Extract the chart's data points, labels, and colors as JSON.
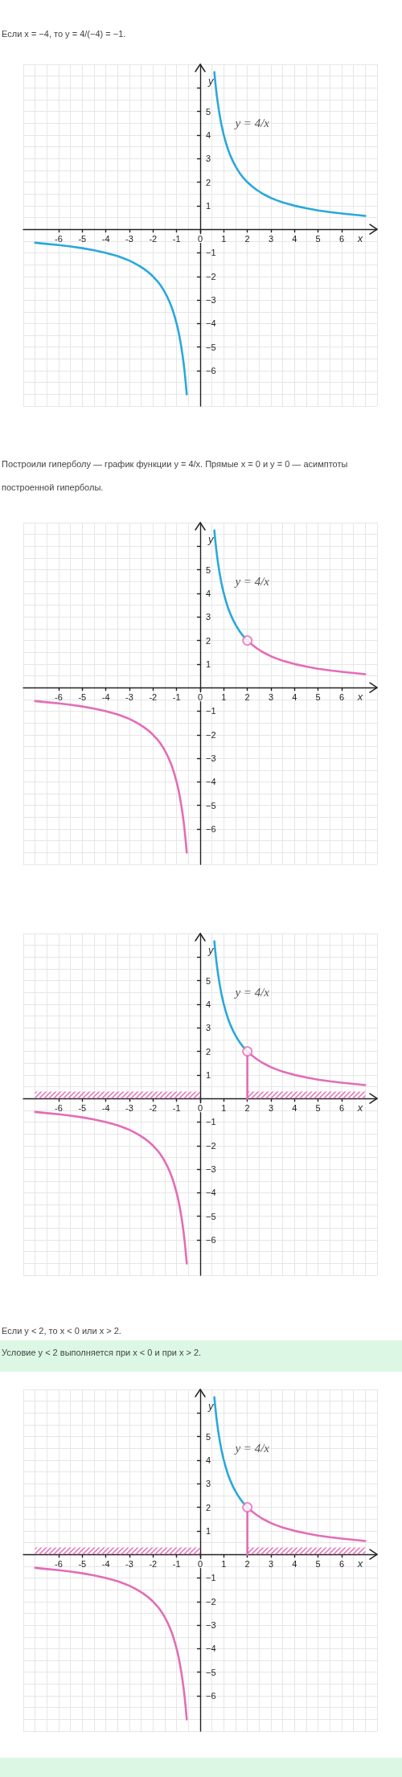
{
  "chart_data": [
    {
      "type": "line",
      "title": "Если x = −4, то y = 4/(−4) = −1.",
      "xlabel": "x",
      "ylabel": "y",
      "xlim": [
        -7.5,
        7.5
      ],
      "ylim": [
        -7.5,
        7
      ],
      "xticks": [
        -6,
        -5,
        -4,
        -3,
        -2,
        -1,
        0,
        1,
        2,
        3,
        4,
        5,
        6
      ],
      "yticks": [
        {
          "value": 6,
          "label": null
        },
        5,
        4,
        3,
        2,
        1,
        {
          "value": -1,
          "label": "−1"
        },
        {
          "value": -2,
          "label": "−2"
        },
        {
          "value": -3,
          "label": "−3"
        },
        {
          "value": -4,
          "label": "−4"
        },
        {
          "value": -5,
          "label": "−5"
        },
        {
          "value": -6,
          "label": "−6"
        }
      ],
      "grid": true,
      "annotations": [
        "y = 4/x"
      ],
      "series": [
        {
          "color": "#2aa8dc",
          "x": [
            0.6,
            0.62,
            0.65,
            0.68,
            0.7,
            0.75,
            0.8,
            0.85,
            0.9,
            0.95,
            1,
            1.1,
            1.2,
            1.3,
            1.4,
            1.5,
            1.6,
            1.7,
            1.8,
            1.9,
            2,
            2.2,
            2.4,
            2.6,
            2.8,
            3,
            3.25,
            3.5,
            3.75,
            4,
            4.5,
            5,
            5.5,
            6,
            6.5,
            7
          ],
          "values": [
            6.67,
            6.45,
            6.15,
            5.88,
            5.71,
            5.33,
            5,
            4.71,
            4.44,
            4.21,
            4,
            3.64,
            3.33,
            3.08,
            2.86,
            2.67,
            2.5,
            2.35,
            2.22,
            2.11,
            2,
            1.82,
            1.67,
            1.54,
            1.43,
            1.33,
            1.23,
            1.14,
            1.07,
            1,
            0.89,
            0.8,
            0.73,
            0.67,
            0.62,
            0.57
          ]
        },
        {
          "color": "#2aa8dc",
          "x": [
            -7,
            -6.5,
            -6,
            -5.5,
            -5,
            -4.5,
            -4,
            -3.75,
            -3.5,
            -3.25,
            -3,
            -2.8,
            -2.6,
            -2.4,
            -2.2,
            -2,
            -1.9,
            -1.8,
            -1.7,
            -1.6,
            -1.5,
            -1.4,
            -1.3,
            -1.2,
            -1.1,
            -1,
            -0.95,
            -0.9,
            -0.85,
            -0.8,
            -0.75,
            -0.7,
            -0.68,
            -0.65,
            -0.62,
            -0.6,
            -0.57
          ],
          "values": [
            -0.57,
            -0.62,
            -0.67,
            -0.73,
            -0.8,
            -0.89,
            -1,
            -1.07,
            -1.14,
            -1.23,
            -1.33,
            -1.43,
            -1.54,
            -1.67,
            -1.82,
            -2,
            -2.11,
            -2.22,
            -2.35,
            -2.5,
            -2.67,
            -2.86,
            -3.08,
            -3.33,
            -3.64,
            -4,
            -4.21,
            -4.44,
            -4.71,
            -5,
            -5.33,
            -5.71,
            -5.88,
            -6.15,
            -6.45,
            -6.67,
            -7
          ]
        }
      ]
    },
    {
      "type": "line",
      "title": "Построили гиперболу — график функции y = 4/x. Прямые x = 0 и y = 0 — асимптоты построенной гиперболы.",
      "xlabel": "x",
      "ylabel": "y",
      "xlim": [
        -7.5,
        7.5
      ],
      "ylim": [
        -7.5,
        7
      ],
      "xticks": [
        -6,
        -5,
        -4,
        -3,
        -2,
        -1,
        0,
        1,
        2,
        3,
        4,
        5,
        6
      ],
      "yticks": [
        {
          "value": 6,
          "label": null
        },
        5,
        4,
        3,
        2,
        1,
        {
          "value": -1,
          "label": "−1"
        },
        {
          "value": -2,
          "label": "−2"
        },
        {
          "value": -3,
          "label": "−3"
        },
        {
          "value": -4,
          "label": "−4"
        },
        {
          "value": -5,
          "label": "−5"
        },
        {
          "value": -6,
          "label": "−6"
        }
      ],
      "grid": true,
      "annotations": [
        "y = 4/x"
      ],
      "series": [
        {
          "color": "#2aa8dc",
          "x": [
            0.6,
            0.62,
            0.65,
            0.68,
            0.7,
            0.75,
            0.8,
            0.85,
            0.9,
            0.95,
            1,
            1.1,
            1.2,
            1.3,
            1.4,
            1.5,
            1.6,
            1.7,
            1.8,
            1.9,
            2
          ],
          "values": [
            6.67,
            6.45,
            6.15,
            5.88,
            5.71,
            5.33,
            5,
            4.71,
            4.44,
            4.21,
            4,
            3.64,
            3.33,
            3.08,
            2.86,
            2.67,
            2.5,
            2.35,
            2.22,
            2.11,
            2
          ]
        },
        {
          "color": "#e36db6",
          "x": [
            2,
            2.2,
            2.4,
            2.6,
            2.8,
            3,
            3.25,
            3.5,
            3.75,
            4,
            4.5,
            5,
            5.5,
            6,
            6.5,
            7
          ],
          "values": [
            2,
            1.82,
            1.67,
            1.54,
            1.43,
            1.33,
            1.23,
            1.14,
            1.07,
            1,
            0.89,
            0.8,
            0.73,
            0.67,
            0.62,
            0.57
          ]
        },
        {
          "color": "#e36db6",
          "x": [
            -7,
            -6.5,
            -6,
            -5.5,
            -5,
            -4.5,
            -4,
            -3.75,
            -3.5,
            -3.25,
            -3,
            -2.8,
            -2.6,
            -2.4,
            -2.2,
            -2,
            -1.9,
            -1.8,
            -1.7,
            -1.6,
            -1.5,
            -1.4,
            -1.3,
            -1.2,
            -1.1,
            -1,
            -0.95,
            -0.9,
            -0.85,
            -0.8,
            -0.75,
            -0.7,
            -0.68,
            -0.65,
            -0.62,
            -0.6,
            -0.57
          ],
          "values": [
            -0.57,
            -0.62,
            -0.67,
            -0.73,
            -0.8,
            -0.89,
            -1,
            -1.07,
            -1.14,
            -1.23,
            -1.33,
            -1.43,
            -1.54,
            -1.67,
            -1.82,
            -2,
            -2.11,
            -2.22,
            -2.35,
            -2.5,
            -2.67,
            -2.86,
            -3.08,
            -3.33,
            -3.64,
            -4,
            -4.21,
            -4.44,
            -4.71,
            -5,
            -5.33,
            -5.71,
            -5.88,
            -6.15,
            -6.45,
            -6.67,
            -7
          ]
        },
        {
          "type": "scatter",
          "marker": "circle",
          "color": "#e36db6",
          "x": [
            2
          ],
          "values": [
            2
          ]
        }
      ]
    },
    {
      "type": "line",
      "xlabel": "x",
      "ylabel": "y",
      "xlim": [
        -7.5,
        7.5
      ],
      "ylim": [
        -7.5,
        7
      ],
      "xticks": [
        -6,
        -5,
        -4,
        -3,
        -2,
        -1,
        0,
        1,
        2,
        3,
        4,
        5,
        6
      ],
      "yticks": [
        {
          "value": 6,
          "label": null
        },
        5,
        4,
        3,
        2,
        1,
        {
          "value": -1,
          "label": "−1"
        },
        {
          "value": -2,
          "label": "−2"
        },
        {
          "value": -3,
          "label": "−3"
        },
        {
          "value": -4,
          "label": "−4"
        },
        {
          "value": -5,
          "label": "−5"
        },
        {
          "value": -6,
          "label": "−6"
        }
      ],
      "grid": true,
      "annotations": [
        "y = 4/x"
      ],
      "series": [
        {
          "type": "area",
          "color": "#e36db6",
          "x": [
            -7,
            0
          ],
          "values": [
            0.3,
            0.3
          ]
        },
        {
          "type": "area",
          "color": "#e36db6",
          "x": [
            2,
            7
          ],
          "values": [
            0.3,
            0.3
          ]
        },
        {
          "color": "#2aa8dc",
          "x": [
            0.6,
            0.62,
            0.65,
            0.68,
            0.7,
            0.75,
            0.8,
            0.85,
            0.9,
            0.95,
            1,
            1.1,
            1.2,
            1.3,
            1.4,
            1.5,
            1.6,
            1.7,
            1.8,
            1.9,
            2
          ],
          "values": [
            6.67,
            6.45,
            6.15,
            5.88,
            5.71,
            5.33,
            5,
            4.71,
            4.44,
            4.21,
            4,
            3.64,
            3.33,
            3.08,
            2.86,
            2.67,
            2.5,
            2.35,
            2.22,
            2.11,
            2
          ]
        },
        {
          "color": "#e36db6",
          "x": [
            2,
            2.2,
            2.4,
            2.6,
            2.8,
            3,
            3.25,
            3.5,
            3.75,
            4,
            4.5,
            5,
            5.5,
            6,
            6.5,
            7
          ],
          "values": [
            2,
            1.82,
            1.67,
            1.54,
            1.43,
            1.33,
            1.23,
            1.14,
            1.07,
            1,
            0.89,
            0.8,
            0.73,
            0.67,
            0.62,
            0.57
          ]
        },
        {
          "color": "#e36db6",
          "x": [
            -7,
            -6.5,
            -6,
            -5.5,
            -5,
            -4.5,
            -4,
            -3.75,
            -3.5,
            -3.25,
            -3,
            -2.8,
            -2.6,
            -2.4,
            -2.2,
            -2,
            -1.9,
            -1.8,
            -1.7,
            -1.6,
            -1.5,
            -1.4,
            -1.3,
            -1.2,
            -1.1,
            -1,
            -0.95,
            -0.9,
            -0.85,
            -0.8,
            -0.75,
            -0.7,
            -0.68,
            -0.65,
            -0.62,
            -0.6,
            -0.57
          ],
          "values": [
            -0.57,
            -0.62,
            -0.67,
            -0.73,
            -0.8,
            -0.89,
            -1,
            -1.07,
            -1.14,
            -1.23,
            -1.33,
            -1.43,
            -1.54,
            -1.67,
            -1.82,
            -2,
            -2.11,
            -2.22,
            -2.35,
            -2.5,
            -2.67,
            -2.86,
            -3.08,
            -3.33,
            -3.64,
            -4,
            -4.21,
            -4.44,
            -4.71,
            -5,
            -5.33,
            -5.71,
            -5.88,
            -6.15,
            -6.45,
            -6.67,
            -7
          ]
        },
        {
          "color": "#e36db6",
          "x": [
            2,
            2
          ],
          "values": [
            0,
            2
          ]
        },
        {
          "type": "scatter",
          "marker": "circle",
          "color": "#e36db6",
          "x": [
            2
          ],
          "values": [
            2
          ]
        }
      ]
    },
    {
      "type": "line",
      "title": "Если y < 2, то x < 0 или x > 2.",
      "subtitle": "Условие y < 2 выполняется при x < 0 и при x > 2.",
      "xlabel": "x",
      "ylabel": "y",
      "xlim": [
        -7.5,
        7.5
      ],
      "ylim": [
        -7.5,
        7
      ],
      "xticks": [
        -6,
        -5,
        -4,
        -3,
        -2,
        -1,
        0,
        1,
        2,
        3,
        4,
        5,
        6
      ],
      "yticks": [
        {
          "value": 6,
          "label": null
        },
        5,
        4,
        3,
        2,
        1,
        {
          "value": -1,
          "label": "−1"
        },
        {
          "value": -2,
          "label": "−2"
        },
        {
          "value": -3,
          "label": "−3"
        },
        {
          "value": -4,
          "label": "−4"
        },
        {
          "value": -5,
          "label": "−5"
        },
        {
          "value": -6,
          "label": "−6"
        }
      ],
      "grid": true,
      "annotations": [
        "y = 4/x"
      ],
      "series": [
        {
          "type": "area",
          "color": "#e36db6",
          "x": [
            -7,
            0
          ],
          "values": [
            0.3,
            0.3
          ]
        },
        {
          "type": "area",
          "color": "#e36db6",
          "x": [
            2,
            7
          ],
          "values": [
            0.3,
            0.3
          ]
        },
        {
          "color": "#2aa8dc",
          "x": [
            0.6,
            0.62,
            0.65,
            0.68,
            0.7,
            0.75,
            0.8,
            0.85,
            0.9,
            0.95,
            1,
            1.1,
            1.2,
            1.3,
            1.4,
            1.5,
            1.6,
            1.7,
            1.8,
            1.9,
            2
          ],
          "values": [
            6.67,
            6.45,
            6.15,
            5.88,
            5.71,
            5.33,
            5,
            4.71,
            4.44,
            4.21,
            4,
            3.64,
            3.33,
            3.08,
            2.86,
            2.67,
            2.5,
            2.35,
            2.22,
            2.11,
            2
          ]
        },
        {
          "color": "#e36db6",
          "x": [
            2,
            2.2,
            2.4,
            2.6,
            2.8,
            3,
            3.25,
            3.5,
            3.75,
            4,
            4.5,
            5,
            5.5,
            6,
            6.5,
            7
          ],
          "values": [
            2,
            1.82,
            1.67,
            1.54,
            1.43,
            1.33,
            1.23,
            1.14,
            1.07,
            1,
            0.89,
            0.8,
            0.73,
            0.67,
            0.62,
            0.57
          ]
        },
        {
          "color": "#e36db6",
          "x": [
            -7,
            -6.5,
            -6,
            -5.5,
            -5,
            -4.5,
            -4,
            -3.75,
            -3.5,
            -3.25,
            -3,
            -2.8,
            -2.6,
            -2.4,
            -2.2,
            -2,
            -1.9,
            -1.8,
            -1.7,
            -1.6,
            -1.5,
            -1.4,
            -1.3,
            -1.2,
            -1.1,
            -1,
            -0.95,
            -0.9,
            -0.85,
            -0.8,
            -0.75,
            -0.7,
            -0.68,
            -0.65,
            -0.62,
            -0.6,
            -0.57
          ],
          "values": [
            -0.57,
            -0.62,
            -0.67,
            -0.73,
            -0.8,
            -0.89,
            -1,
            -1.07,
            -1.14,
            -1.23,
            -1.33,
            -1.43,
            -1.54,
            -1.67,
            -1.82,
            -2,
            -2.11,
            -2.22,
            -2.35,
            -2.5,
            -2.67,
            -2.86,
            -3.08,
            -3.33,
            -3.64,
            -4,
            -4.21,
            -4.44,
            -4.71,
            -5,
            -5.33,
            -5.71,
            -5.88,
            -6.15,
            -6.45,
            -6.67,
            -7
          ]
        },
        {
          "color": "#e36db6",
          "x": [
            2,
            2
          ],
          "values": [
            0,
            2
          ]
        },
        {
          "type": "scatter",
          "marker": "circle",
          "color": "#e36db6",
          "x": [
            2
          ],
          "values": [
            2
          ]
        }
      ]
    }
  ]
}
